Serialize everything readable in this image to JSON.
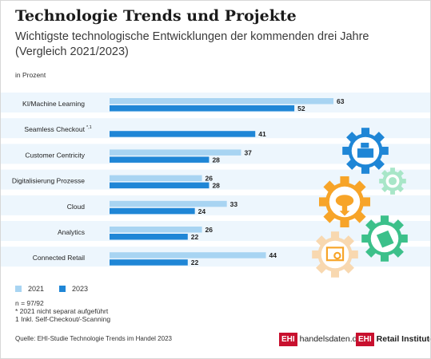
{
  "header": {
    "title": "Technologie Trends und Projekte",
    "subtitle_line1": "Wichtigste technologische Entwicklungen der kommenden drei Jahre",
    "subtitle_line2": "(Vergleich 2021/2023)",
    "unit": "in Prozent"
  },
  "chart_data": {
    "type": "bar",
    "orientation": "horizontal",
    "categories": [
      "KI/Machine Learning",
      "Seamless Checkout",
      "Customer Centricity",
      "Digitalisierung Prozesse",
      "Cloud",
      "Analytics",
      "Connected Retail"
    ],
    "category_markers": [
      "",
      "*,1",
      "",
      "",
      "",
      "",
      ""
    ],
    "series": [
      {
        "name": "2021",
        "color": "#a8d4f2",
        "values": [
          63,
          null,
          37,
          26,
          33,
          26,
          44
        ]
      },
      {
        "name": "2023",
        "color": "#1f86d6",
        "values": [
          52,
          41,
          28,
          28,
          24,
          22,
          22
        ]
      }
    ],
    "xlim": [
      0,
      63
    ],
    "legend_position": "bottom-left",
    "grid": false
  },
  "notes": {
    "n": "n = 97/92",
    "footnote_star": "* 2021 nicht separat aufgeführt",
    "footnote_one": "1 Inkl. Self-Checkout/-Scanning"
  },
  "source": "Quelle: EHI-Studie Technologie Trends im Handel 2023",
  "logos": {
    "ehi_box": "EHI",
    "handelsdaten": "handelsdaten.de",
    "retail_institute": "Retail Institute"
  },
  "colors": {
    "band": "#edf6fd",
    "gear_blue": "#1f86d6",
    "gear_orange": "#f7a428",
    "gear_green": "#3cc08a",
    "gear_peach": "#f8d8b0",
    "gear_mint": "#a8e6c8"
  }
}
